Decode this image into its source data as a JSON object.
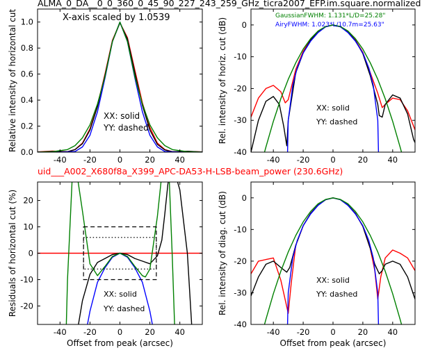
{
  "figure": {
    "title": "ALMA_0_DA__0_0_360_0_45_90_227_243_259_GHz_ticra2007_EFP.im.square.normalized",
    "subtitle": "uid___A002_X680f8a_X399_APC-DA53-H-LSB-beam_power (230.6GHz)",
    "subtitle_color": "#ff0000"
  },
  "chart_data": [
    {
      "type": "line",
      "title": "",
      "xlabel": "",
      "ylabel": "Relative intensity of horizontal cut",
      "xlim": [
        -55,
        55
      ],
      "ylim": [
        0,
        1.1
      ],
      "xticks": [
        "-40",
        "-20",
        "0",
        "20",
        "40"
      ],
      "yticks": [
        "0.0",
        "0.2",
        "0.4",
        "0.6",
        "0.8",
        "1.0"
      ],
      "annotations": [
        "X-axis scaled by 1.0539",
        "XX: solid",
        "YY: dashed"
      ],
      "series": [
        {
          "color": "#ff0000",
          "x": [
            -55,
            -45,
            -35,
            -30,
            -25,
            -20,
            -15,
            -10,
            -5,
            0,
            5,
            10,
            15,
            20,
            25,
            30,
            35,
            45,
            55
          ],
          "y": [
            0.002,
            0.008,
            0.004,
            0.02,
            0.07,
            0.18,
            0.36,
            0.6,
            0.86,
            0.995,
            0.88,
            0.63,
            0.38,
            0.19,
            0.07,
            0.02,
            0.004,
            0.006,
            0.002
          ]
        },
        {
          "color": "#000000",
          "x": [
            -55,
            -45,
            -35,
            -30,
            -25,
            -20,
            -15,
            -10,
            -5,
            0,
            5,
            10,
            15,
            20,
            25,
            30,
            35,
            45,
            55
          ],
          "y": [
            0.0,
            0.006,
            0.003,
            0.02,
            0.065,
            0.17,
            0.35,
            0.59,
            0.85,
            0.995,
            0.87,
            0.61,
            0.36,
            0.17,
            0.06,
            0.017,
            0.003,
            0.007,
            0.001
          ]
        },
        {
          "color": "#0000ff",
          "x": [
            -55,
            -40,
            -30,
            -25,
            -20,
            -15,
            -10,
            -5,
            0,
            5,
            10,
            15,
            20,
            25,
            30,
            40,
            55
          ],
          "y": [
            0.0,
            0.0,
            0.005,
            0.04,
            0.13,
            0.31,
            0.57,
            0.85,
            1.0,
            0.85,
            0.57,
            0.31,
            0.13,
            0.04,
            0.005,
            0.0,
            0.0
          ]
        },
        {
          "color": "#008000",
          "x": [
            -55,
            -45,
            -35,
            -30,
            -25,
            -20,
            -15,
            -10,
            -5,
            0,
            5,
            10,
            15,
            20,
            25,
            30,
            35,
            45,
            55
          ],
          "y": [
            0.0,
            0.004,
            0.02,
            0.05,
            0.11,
            0.21,
            0.37,
            0.58,
            0.85,
            1.0,
            0.85,
            0.58,
            0.37,
            0.21,
            0.11,
            0.05,
            0.02,
            0.004,
            0.0
          ]
        }
      ]
    },
    {
      "type": "line",
      "title": "",
      "xlabel": "",
      "ylabel": "Rel. intensity of horiz. cut (dB)",
      "xlim": [
        -55,
        55
      ],
      "ylim": [
        -40,
        5
      ],
      "xticks": [
        "-40",
        "-20",
        "0",
        "20",
        "40"
      ],
      "yticks": [
        "0",
        "-10",
        "-20",
        "-30",
        "-40"
      ],
      "annotations": [
        "XX: solid",
        "YY: dashed"
      ],
      "legend": [
        {
          "text": "GaussianFWHM: 1.131*L/D=25.28\"",
          "color": "#008000"
        },
        {
          "text": "AiryFWHM: 1.023*L/10.7m=25.63\"",
          "color": "#0000ff"
        }
      ],
      "series": [
        {
          "color": "#ff0000",
          "x": [
            -55,
            -50,
            -45,
            -40,
            -35,
            -32,
            -30,
            -25,
            -20,
            -15,
            -10,
            -5,
            0,
            5,
            10,
            15,
            20,
            25,
            30,
            33,
            35,
            40,
            45,
            50,
            55
          ],
          "y": [
            -29,
            -23,
            -20,
            -19,
            -21,
            -24.5,
            -23.5,
            -14,
            -8.3,
            -4.6,
            -2.2,
            -0.6,
            0,
            -0.6,
            -2.3,
            -4.8,
            -8.6,
            -15,
            -21.5,
            -26,
            -25,
            -23,
            -23.5,
            -27,
            -33
          ]
        },
        {
          "color": "#000000",
          "x": [
            -55,
            -50,
            -45,
            -40,
            -36,
            -33,
            -31,
            -30,
            -25,
            -20,
            -15,
            -10,
            -5,
            0,
            5,
            10,
            15,
            20,
            25,
            30,
            31,
            33,
            35,
            40,
            45,
            50,
            54,
            55
          ],
          "y": [
            -40,
            -30,
            -24,
            -22.5,
            -25,
            -32,
            -38,
            -30,
            -15,
            -8.8,
            -4.8,
            -2.3,
            -0.6,
            0,
            -0.6,
            -2.3,
            -4.9,
            -9,
            -16,
            -25,
            -28.5,
            -29,
            -25,
            -22,
            -23,
            -28,
            -36,
            -37
          ]
        },
        {
          "color": "#0000ff",
          "x": [
            -30.5,
            -30,
            -27,
            -24,
            -20,
            -15,
            -10,
            -5,
            0,
            5,
            10,
            15,
            20,
            24,
            27,
            30,
            30.5
          ],
          "y": [
            -40,
            -30,
            -19,
            -13.5,
            -8.8,
            -5.1,
            -2.4,
            -0.6,
            0,
            -0.6,
            -2.4,
            -5.1,
            -8.8,
            -13.5,
            -19,
            -30,
            -40
          ]
        },
        {
          "color": "#008000",
          "x": [
            -47,
            -45,
            -40,
            -35,
            -30,
            -25,
            -20,
            -15,
            -10,
            -5,
            0,
            5,
            10,
            15,
            20,
            25,
            30,
            35,
            40,
            45,
            47
          ],
          "y": [
            -41.8,
            -38.4,
            -30.3,
            -23.2,
            -17.1,
            -11.9,
            -7.6,
            -4.3,
            -1.9,
            -0.5,
            0,
            -0.5,
            -1.9,
            -4.3,
            -7.6,
            -11.9,
            -17.1,
            -23.2,
            -30.3,
            -38.4,
            -41.8
          ]
        }
      ]
    },
    {
      "type": "line",
      "title": "",
      "xlabel": "Offset from peak (arcsec)",
      "ylabel": "Residuals of horizontal cut (%)",
      "xlim": [
        -55,
        55
      ],
      "ylim": [
        -27,
        27
      ],
      "xticks": [
        "-40",
        "-20",
        "0",
        "20",
        "40"
      ],
      "yticks": [
        "20",
        "10",
        "0",
        "-10",
        "-20"
      ],
      "annotations": [
        "XX: solid",
        "YY: dashed"
      ],
      "series": [
        {
          "color": "#ff0000",
          "x": [
            -55,
            55
          ],
          "y": [
            0,
            0
          ]
        },
        {
          "color": "#000000",
          "x": [
            -28,
            -25,
            -20,
            -15,
            -10,
            -5,
            0,
            5,
            10,
            15,
            20,
            25,
            28,
            30,
            32,
            34,
            35,
            37,
            40,
            45,
            48
          ],
          "y": [
            -28,
            -18,
            -8,
            -3.5,
            -2,
            -0.5,
            0,
            -0.5,
            -2,
            -3,
            -4,
            -1,
            5,
            15,
            26,
            33,
            33,
            30,
            24,
            0,
            -28
          ]
        },
        {
          "color": "#0000ff",
          "x": [
            -22,
            -20,
            -15,
            -10,
            -5,
            0,
            5,
            10,
            15,
            20,
            22
          ],
          "y": [
            -28,
            -22,
            -11,
            -5.5,
            -1.5,
            0,
            -1.5,
            -5.5,
            -11,
            -22,
            -28
          ]
        },
        {
          "color": "#008000",
          "x": [
            -35.8,
            -35,
            -32,
            -30,
            -25,
            -20,
            -15,
            -10,
            -5,
            0,
            5,
            10,
            15,
            17,
            20,
            25,
            28,
            30,
            33,
            35,
            36.5
          ],
          "y": [
            -27,
            -10,
            27,
            35,
            16,
            -4,
            -8.5,
            -5,
            -1.2,
            0,
            -1.2,
            -5,
            -8.5,
            -9,
            -6,
            14,
            30,
            40,
            27,
            -2,
            -27
          ]
        }
      ],
      "dashed_box": {
        "x": [
          -24.3,
          24.3
        ],
        "y": [
          -10,
          10
        ]
      },
      "dotted_box": {
        "x": [
          -24.3,
          24.3
        ],
        "y": [
          -6,
          6
        ]
      }
    },
    {
      "type": "line",
      "title": "",
      "xlabel": "Offset from peak (arcsec)",
      "ylabel": "Rel. intensity of diag. cut (dB)",
      "xlim": [
        -55,
        55
      ],
      "ylim": [
        -40,
        5
      ],
      "xticks": [
        "-40",
        "-20",
        "0",
        "20",
        "40"
      ],
      "yticks": [
        "0",
        "-10",
        "-20",
        "-30",
        "-40"
      ],
      "annotations": [
        "XX: solid",
        "YY: dashed"
      ],
      "series": [
        {
          "color": "#ff0000",
          "x": [
            -55,
            -50,
            -45,
            -40,
            -35,
            -30,
            -28,
            -25,
            -20,
            -15,
            -10,
            -5,
            0,
            5,
            10,
            15,
            20,
            25,
            28,
            30,
            32,
            35,
            40,
            45,
            50,
            55
          ],
          "y": [
            -24,
            -20,
            -19.5,
            -19,
            -26,
            -36.5,
            -27,
            -15,
            -8.8,
            -4.9,
            -2.3,
            -0.6,
            0,
            -0.6,
            -2.3,
            -4.9,
            -9,
            -16,
            -23,
            -32,
            -25,
            -19,
            -16.5,
            -17.5,
            -19,
            -23
          ]
        },
        {
          "color": "#000000",
          "x": [
            -55,
            -50,
            -45,
            -40,
            -35,
            -31,
            -29,
            -25,
            -20,
            -15,
            -10,
            -5,
            0,
            5,
            10,
            15,
            20,
            25,
            28,
            31,
            33,
            35,
            40,
            45,
            50,
            55
          ],
          "y": [
            -31,
            -25,
            -21,
            -20,
            -22,
            -23.5,
            -22,
            -15,
            -8.8,
            -4.9,
            -2.3,
            -0.6,
            0,
            -0.6,
            -2.3,
            -4.9,
            -9,
            -16,
            -21,
            -24,
            -23,
            -21,
            -20,
            -21,
            -25,
            -32
          ]
        },
        {
          "color": "#0000ff",
          "x": [
            -30.5,
            -30,
            -27,
            -24,
            -20,
            -15,
            -10,
            -5,
            0,
            5,
            10,
            15,
            20,
            24,
            27,
            30,
            30.5
          ],
          "y": [
            -40,
            -30,
            -19,
            -13.5,
            -8.8,
            -5.1,
            -2.4,
            -0.6,
            0,
            -0.6,
            -2.4,
            -5.1,
            -8.8,
            -13.5,
            -19,
            -30,
            -40
          ]
        },
        {
          "color": "#008000",
          "x": [
            -47,
            -45,
            -40,
            -35,
            -30,
            -25,
            -20,
            -15,
            -10,
            -5,
            0,
            5,
            10,
            15,
            20,
            25,
            30,
            35,
            40,
            45,
            47
          ],
          "y": [
            -41.8,
            -38.4,
            -30.3,
            -23.2,
            -17.1,
            -11.9,
            -7.6,
            -4.3,
            -1.9,
            -0.5,
            0,
            -0.5,
            -1.9,
            -4.3,
            -7.6,
            -11.9,
            -17.1,
            -23.2,
            -30.3,
            -38.4,
            -41.8
          ]
        }
      ]
    }
  ]
}
